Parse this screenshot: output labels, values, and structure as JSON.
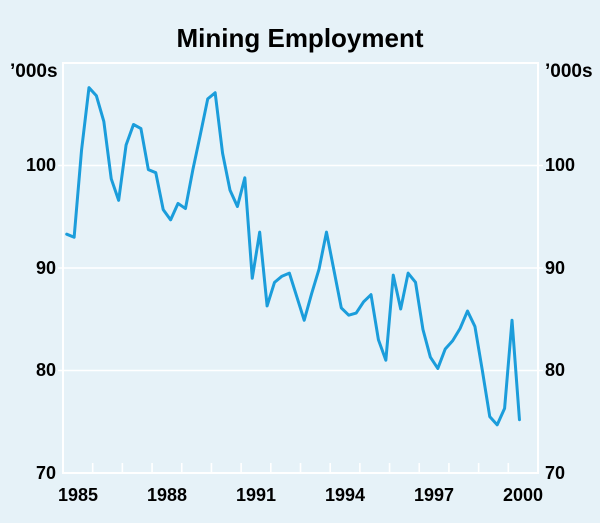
{
  "title": "Mining Employment",
  "axis_unit_label": "’000s",
  "colors": {
    "background": "#e6f2f8",
    "line": "#1b9ddb",
    "grid": "#ffffff",
    "text": "#000000"
  },
  "chart_data": {
    "type": "line",
    "title": "Mining Employment",
    "unit": "'000s (thousands of persons)",
    "frequency": "quarterly",
    "period_start": "1985Q1",
    "period_end": "2000Q2",
    "ylim": [
      70,
      110
    ],
    "xlim_years": [
      1985,
      2001
    ],
    "grid_values": [
      80,
      90,
      100
    ],
    "grid_on": true,
    "legend": "none",
    "ytick_labels": [
      "100",
      "90",
      "80",
      "70"
    ],
    "yticks": [
      100,
      90,
      80,
      70
    ],
    "xtick_labels": [
      "1985",
      "1988",
      "1991",
      "1994",
      "1997",
      "2000"
    ],
    "xtick_years": [
      1985,
      1988,
      1991,
      1994,
      1997,
      2000
    ],
    "series": [
      {
        "name": "Mining employment",
        "values": [
          93.3,
          93.0,
          101.5,
          107.6,
          106.8,
          104.3,
          98.7,
          96.6,
          102.0,
          104.0,
          103.6,
          99.6,
          99.3,
          95.7,
          94.7,
          96.3,
          95.8,
          99.6,
          103.0,
          106.5,
          107.1,
          101.2,
          97.6,
          96.0,
          98.8,
          89.0,
          93.5,
          86.3,
          88.6,
          89.2,
          89.5,
          87.2,
          84.9,
          87.5,
          89.9,
          93.5,
          89.8,
          86.1,
          85.4,
          85.6,
          86.7,
          87.4,
          83.0,
          81.0,
          89.3,
          86.0,
          89.5,
          88.6,
          84.0,
          81.3,
          80.2,
          82.1,
          82.9,
          84.1,
          85.8,
          84.3,
          80.0,
          75.5,
          74.7,
          76.3,
          84.9,
          75.2
        ]
      }
    ]
  }
}
